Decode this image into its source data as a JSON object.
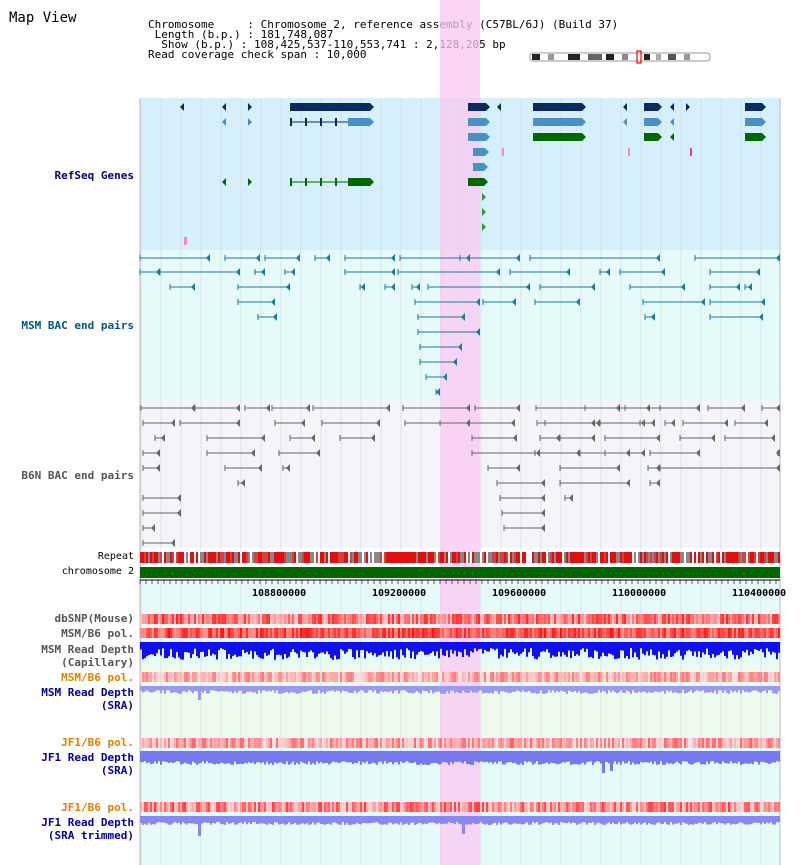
{
  "app": {
    "title": "Map View"
  },
  "info": {
    "chromosome_line": "Chromosome     : Chromosome 2, reference assembly (C57BL/6J) (Build 37)",
    "length_line": " Length (b.p.) : 181,748,087",
    "show_line": "  Show (b.p.) : 108,425,537-110,553,741 : 2,128,205 bp",
    "coverage_line": "Read coverage check span : 10,000"
  },
  "tracks": {
    "refseq": {
      "label": "RefSeq Genes",
      "color": "#000080"
    },
    "msm_bac": {
      "label": "MSM BAC end pairs",
      "color": "#005580"
    },
    "b6n_bac": {
      "label": "B6N BAC end pairs",
      "color": "#555555"
    },
    "repeat": {
      "label": "Repeat"
    },
    "chromosome": {
      "label": "chromosome 2"
    },
    "dbsnp": {
      "label": "dbSNP(Mouse)"
    },
    "msm_pol": {
      "label": "MSM/B6 pol."
    },
    "msm_depth_cap": {
      "label_line1": "MSM Read Depth",
      "label_line2": "(Capillary)"
    },
    "msm_pol2": {
      "label": "MSM/B6 pol.",
      "color": "#e08000"
    },
    "msm_depth_sra": {
      "label_line1": "MSM Read Depth",
      "label_line2": "(SRA)",
      "color": "#000099"
    },
    "jf1_pol": {
      "label": "JF1/B6 pol.",
      "color": "#e08000"
    },
    "jf1_depth": {
      "label_line1": "JF1 Read Depth",
      "label_line2": "(SRA)",
      "color": "#000099"
    },
    "jf1_pol2": {
      "label": "JF1/B6 pol.",
      "color": "#e08000"
    },
    "jf1_depth_trim": {
      "label_line1": "JF1 Read Depth",
      "label_line2": "(SRA trimmed)",
      "color": "#000099"
    }
  },
  "axis": {
    "ticks": [
      "108800000",
      "109200000",
      "109600000",
      "110000000",
      "110400000"
    ]
  },
  "colors": {
    "refseq_bg": "#d5f0fa",
    "msm_bg": "#e6fafa",
    "b6n_bg": "#f4f4fb",
    "highlight": "#f9d3f3",
    "gene_dark": "#0a2a60",
    "gene_mid": "#4a90c0",
    "gene_green": "#006600"
  }
}
